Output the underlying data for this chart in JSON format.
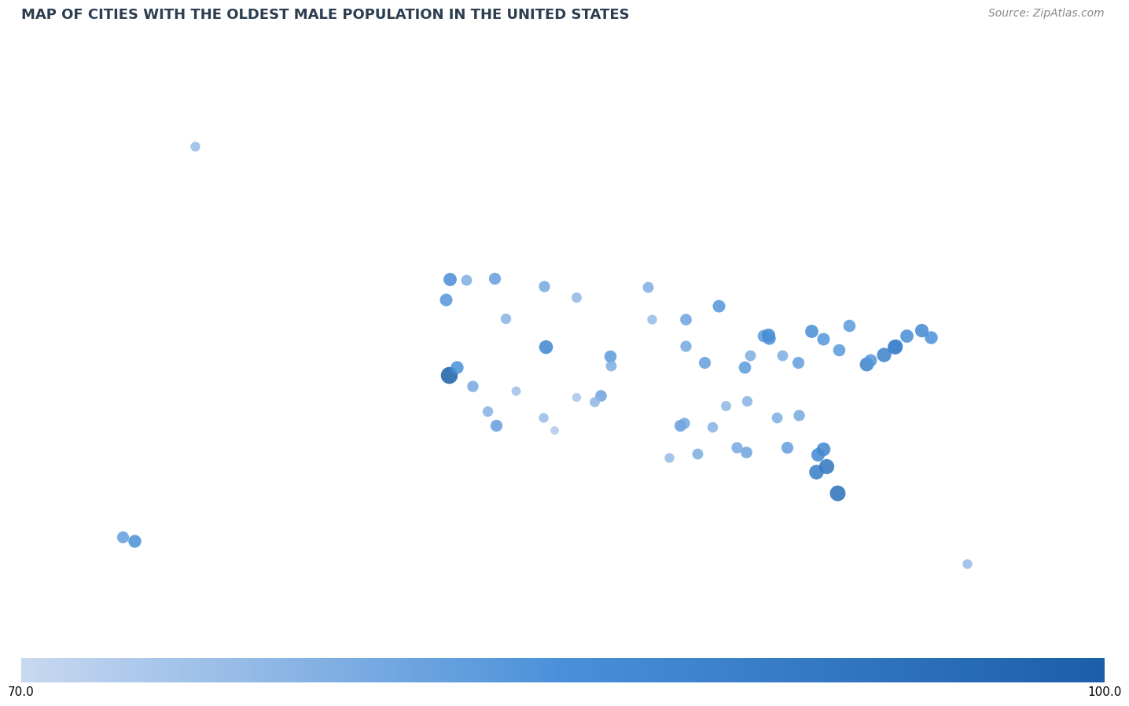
{
  "title": "MAP OF CITIES WITH THE OLDEST MALE POPULATION IN THE UNITED STATES",
  "source": "Source: ZipAtlas.com",
  "colorbar_min": 70.0,
  "colorbar_max": 100.0,
  "background_color": "#d6dfe8",
  "land_color": "#f0f4f8",
  "water_color": "#c8d8e8",
  "cities": [
    {
      "lon": -122.4,
      "lat": 37.8,
      "value": 100
    },
    {
      "lon": -121.5,
      "lat": 38.6,
      "value": 85
    },
    {
      "lon": -118.2,
      "lat": 34.1,
      "value": 78
    },
    {
      "lon": -119.8,
      "lat": 36.7,
      "value": 80
    },
    {
      "lon": -117.2,
      "lat": 32.7,
      "value": 82
    },
    {
      "lon": -115.1,
      "lat": 36.2,
      "value": 75
    },
    {
      "lon": -112.1,
      "lat": 33.5,
      "value": 76
    },
    {
      "lon": -111.9,
      "lat": 40.7,
      "value": 88
    },
    {
      "lon": -104.9,
      "lat": 39.7,
      "value": 83
    },
    {
      "lon": -104.8,
      "lat": 38.8,
      "value": 79
    },
    {
      "lon": -105.9,
      "lat": 35.7,
      "value": 81
    },
    {
      "lon": -106.6,
      "lat": 35.1,
      "value": 77
    },
    {
      "lon": -108.5,
      "lat": 35.6,
      "value": 74
    },
    {
      "lon": -110.9,
      "lat": 32.2,
      "value": 73
    },
    {
      "lon": -97.3,
      "lat": 32.7,
      "value": 82
    },
    {
      "lon": -96.8,
      "lat": 32.9,
      "value": 80
    },
    {
      "lon": -98.5,
      "lat": 29.4,
      "value": 76
    },
    {
      "lon": -95.4,
      "lat": 29.8,
      "value": 79
    },
    {
      "lon": -93.8,
      "lat": 32.5,
      "value": 78
    },
    {
      "lon": -90.1,
      "lat": 29.9,
      "value": 81
    },
    {
      "lon": -88.2,
      "lat": 41.8,
      "value": 83
    },
    {
      "lon": -87.7,
      "lat": 41.9,
      "value": 87
    },
    {
      "lon": -87.6,
      "lat": 41.6,
      "value": 85
    },
    {
      "lon": -83.0,
      "lat": 42.3,
      "value": 86
    },
    {
      "lon": -84.5,
      "lat": 39.1,
      "value": 82
    },
    {
      "lon": -86.2,
      "lat": 39.8,
      "value": 79
    },
    {
      "lon": -81.7,
      "lat": 41.5,
      "value": 84
    },
    {
      "lon": -80.0,
      "lat": 40.4,
      "value": 83
    },
    {
      "lon": -75.2,
      "lat": 39.9,
      "value": 90
    },
    {
      "lon": -74.0,
      "lat": 40.7,
      "value": 92
    },
    {
      "lon": -73.9,
      "lat": 40.8,
      "value": 88
    },
    {
      "lon": -71.1,
      "lat": 42.4,
      "value": 87
    },
    {
      "lon": -70.0,
      "lat": 41.7,
      "value": 85
    },
    {
      "lon": -72.7,
      "lat": 41.8,
      "value": 86
    },
    {
      "lon": -77.0,
      "lat": 38.9,
      "value": 89
    },
    {
      "lon": -76.6,
      "lat": 39.3,
      "value": 84
    },
    {
      "lon": -78.9,
      "lat": 42.9,
      "value": 83
    },
    {
      "lon": -66.1,
      "lat": 18.5,
      "value": 76
    },
    {
      "lon": -80.2,
      "lat": 25.8,
      "value": 95
    },
    {
      "lon": -81.4,
      "lat": 28.5,
      "value": 93
    },
    {
      "lon": -82.5,
      "lat": 27.9,
      "value": 91
    },
    {
      "lon": -81.7,
      "lat": 30.3,
      "value": 88
    },
    {
      "lon": -82.3,
      "lat": 29.7,
      "value": 87
    },
    {
      "lon": -85.7,
      "lat": 30.4,
      "value": 82
    },
    {
      "lon": -84.4,
      "lat": 33.7,
      "value": 80
    },
    {
      "lon": -86.8,
      "lat": 33.5,
      "value": 79
    },
    {
      "lon": -90.0,
      "lat": 35.2,
      "value": 78
    },
    {
      "lon": -93.1,
      "lat": 44.9,
      "value": 84
    },
    {
      "lon": -96.7,
      "lat": 43.5,
      "value": 81
    },
    {
      "lon": -100.8,
      "lat": 46.8,
      "value": 79
    },
    {
      "lon": -96.7,
      "lat": 40.8,
      "value": 80
    },
    {
      "lon": -94.6,
      "lat": 39.1,
      "value": 82
    },
    {
      "lon": -90.3,
      "lat": 38.6,
      "value": 83
    },
    {
      "lon": -89.7,
      "lat": 39.8,
      "value": 79
    },
    {
      "lon": -92.3,
      "lat": 34.7,
      "value": 77
    },
    {
      "lon": -91.1,
      "lat": 30.4,
      "value": 80
    },
    {
      "lon": -156.5,
      "lat": 20.9,
      "value": 85
    },
    {
      "lon": -157.8,
      "lat": 21.3,
      "value": 82
    },
    {
      "lon": -149.9,
      "lat": 61.2,
      "value": 76
    },
    {
      "lon": -117.4,
      "lat": 47.7,
      "value": 82
    },
    {
      "lon": -122.3,
      "lat": 47.6,
      "value": 86
    },
    {
      "lon": -122.7,
      "lat": 45.5,
      "value": 84
    },
    {
      "lon": -120.5,
      "lat": 47.5,
      "value": 79
    },
    {
      "lon": -116.2,
      "lat": 43.6,
      "value": 78
    },
    {
      "lon": -112.0,
      "lat": 46.9,
      "value": 80
    },
    {
      "lon": -108.5,
      "lat": 45.8,
      "value": 77
    },
    {
      "lon": -100.3,
      "lat": 43.5,
      "value": 76
    }
  ]
}
